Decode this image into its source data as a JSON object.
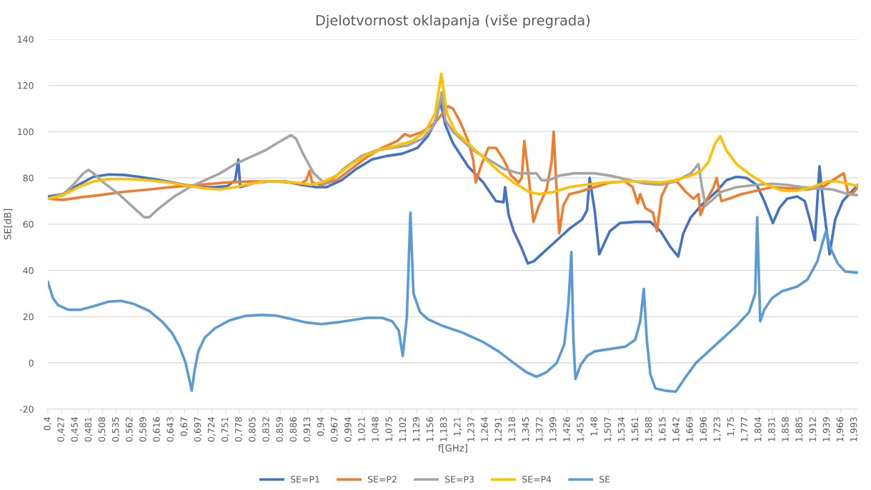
{
  "chart_data": {
    "type": "line",
    "title": "Djelotvornost oklapanja (više pregrada)",
    "xlabel": "f[GHz]",
    "ylabel": "SE[dB]",
    "xlim": [
      0.4,
      2.0
    ],
    "ylim": [
      -20,
      140
    ],
    "yticks": [
      -20,
      0,
      20,
      40,
      60,
      80,
      100,
      120,
      140
    ],
    "xticks": [
      {
        "value": 0.4,
        "label": "0,4"
      },
      {
        "value": 0.427,
        "label": "0,427"
      },
      {
        "value": 0.454,
        "label": "0,454"
      },
      {
        "value": 0.481,
        "label": "0,481"
      },
      {
        "value": 0.508,
        "label": "0,508"
      },
      {
        "value": 0.535,
        "label": "0,535"
      },
      {
        "value": 0.562,
        "label": "0,562"
      },
      {
        "value": 0.589,
        "label": "0,589"
      },
      {
        "value": 0.616,
        "label": "0,616"
      },
      {
        "value": 0.643,
        "label": "0,643"
      },
      {
        "value": 0.67,
        "label": "0,67"
      },
      {
        "value": 0.697,
        "label": "0,697"
      },
      {
        "value": 0.724,
        "label": "0,724"
      },
      {
        "value": 0.751,
        "label": "0,751"
      },
      {
        "value": 0.778,
        "label": "0,778"
      },
      {
        "value": 0.805,
        "label": "0,805"
      },
      {
        "value": 0.832,
        "label": "0,832"
      },
      {
        "value": 0.859,
        "label": "0,859"
      },
      {
        "value": 0.886,
        "label": "0,886"
      },
      {
        "value": 0.913,
        "label": "0,913"
      },
      {
        "value": 0.94,
        "label": "0,94"
      },
      {
        "value": 0.967,
        "label": "0,967"
      },
      {
        "value": 0.994,
        "label": "0,994"
      },
      {
        "value": 1.021,
        "label": "1,021"
      },
      {
        "value": 1.048,
        "label": "1,048"
      },
      {
        "value": 1.075,
        "label": "1,075"
      },
      {
        "value": 1.102,
        "label": "1,102"
      },
      {
        "value": 1.129,
        "label": "1,129"
      },
      {
        "value": 1.156,
        "label": "1,156"
      },
      {
        "value": 1.183,
        "label": "1,183"
      },
      {
        "value": 1.21,
        "label": "1,21"
      },
      {
        "value": 1.237,
        "label": "1,237"
      },
      {
        "value": 1.264,
        "label": "1,264"
      },
      {
        "value": 1.291,
        "label": "1,291"
      },
      {
        "value": 1.318,
        "label": "1,318"
      },
      {
        "value": 1.345,
        "label": "1,345"
      },
      {
        "value": 1.372,
        "label": "1,372"
      },
      {
        "value": 1.399,
        "label": "1,399"
      },
      {
        "value": 1.426,
        "label": "1,426"
      },
      {
        "value": 1.453,
        "label": "1,453"
      },
      {
        "value": 1.48,
        "label": "1,48"
      },
      {
        "value": 1.507,
        "label": "1,507"
      },
      {
        "value": 1.534,
        "label": "1,534"
      },
      {
        "value": 1.561,
        "label": "1,561"
      },
      {
        "value": 1.588,
        "label": "1,588"
      },
      {
        "value": 1.615,
        "label": "1,615"
      },
      {
        "value": 1.642,
        "label": "1,642"
      },
      {
        "value": 1.669,
        "label": "1,669"
      },
      {
        "value": 1.696,
        "label": "1,696"
      },
      {
        "value": 1.723,
        "label": "1,723"
      },
      {
        "value": 1.75,
        "label": "1,75"
      },
      {
        "value": 1.777,
        "label": "1,777"
      },
      {
        "value": 1.804,
        "label": "1,804"
      },
      {
        "value": 1.831,
        "label": "1,831"
      },
      {
        "value": 1.858,
        "label": "1,858"
      },
      {
        "value": 1.885,
        "label": "1,885"
      },
      {
        "value": 1.912,
        "label": "1,912"
      },
      {
        "value": 1.939,
        "label": "1,939"
      },
      {
        "value": 1.966,
        "label": "1,966"
      },
      {
        "value": 1.993,
        "label": "1,993"
      }
    ],
    "grid": "y",
    "legend": "bottom",
    "marker": "none",
    "line_style": "solid",
    "series": [
      {
        "name": "SE=P1",
        "color": "#4472c4",
        "x": [
          0.4,
          0.43,
          0.46,
          0.49,
          0.52,
          0.55,
          0.58,
          0.61,
          0.64,
          0.67,
          0.7,
          0.73,
          0.755,
          0.77,
          0.776,
          0.78,
          0.81,
          0.84,
          0.87,
          0.9,
          0.93,
          0.95,
          0.98,
          1.01,
          1.04,
          1.07,
          1.1,
          1.13,
          1.15,
          1.165,
          1.175,
          1.185,
          1.2,
          1.23,
          1.26,
          1.285,
          1.3,
          1.303,
          1.31,
          1.32,
          1.335,
          1.348,
          1.36,
          1.375,
          1.4,
          1.43,
          1.455,
          1.465,
          1.47,
          1.48,
          1.489,
          1.51,
          1.53,
          1.56,
          1.59,
          1.61,
          1.63,
          1.645,
          1.655,
          1.67,
          1.69,
          1.72,
          1.74,
          1.76,
          1.78,
          1.8,
          1.815,
          1.832,
          1.845,
          1.86,
          1.88,
          1.895,
          1.905,
          1.915,
          1.924,
          1.932,
          1.944,
          1.955,
          1.97,
          2.0
        ],
        "values": [
          72,
          73,
          77,
          80.5,
          81.5,
          81.3,
          80.5,
          79.5,
          78.3,
          77,
          76,
          76,
          76.5,
          79,
          88,
          76,
          78,
          78.5,
          78.5,
          77,
          76,
          76,
          79,
          84,
          88,
          89.5,
          90.5,
          93,
          98,
          104,
          113,
          103,
          95,
          85,
          78,
          70,
          69.5,
          76,
          64,
          57,
          50,
          43,
          44,
          47,
          52,
          58,
          62,
          66,
          80,
          66,
          47,
          57,
          60.5,
          61,
          61,
          57,
          50,
          46,
          56,
          63,
          68,
          74,
          79,
          80.5,
          80,
          77,
          70,
          60.5,
          67,
          71,
          72,
          70,
          62,
          53,
          85,
          68,
          47,
          62,
          70,
          77
        ]
      },
      {
        "name": "SE=P2",
        "color": "#ed7d31",
        "x": [
          0.4,
          0.43,
          0.46,
          0.5,
          0.55,
          0.6,
          0.65,
          0.7,
          0.75,
          0.8,
          0.85,
          0.88,
          0.9,
          0.91,
          0.917,
          0.922,
          0.94,
          0.97,
          1.0,
          1.03,
          1.06,
          1.09,
          1.105,
          1.115,
          1.14,
          1.165,
          1.18,
          1.19,
          1.2,
          1.215,
          1.23,
          1.24,
          1.245,
          1.255,
          1.27,
          1.285,
          1.3,
          1.315,
          1.33,
          1.336,
          1.341,
          1.35,
          1.359,
          1.37,
          1.385,
          1.395,
          1.399,
          1.404,
          1.41,
          1.418,
          1.43,
          1.45,
          1.48,
          1.51,
          1.54,
          1.555,
          1.565,
          1.57,
          1.58,
          1.595,
          1.603,
          1.612,
          1.625,
          1.64,
          1.66,
          1.675,
          1.685,
          1.689,
          1.7,
          1.715,
          1.721,
          1.73,
          1.745,
          1.77,
          1.8,
          1.83,
          1.87,
          1.9,
          1.93,
          1.95,
          1.972,
          1.98,
          1.988,
          2.0
        ],
        "values": [
          71,
          70.5,
          71.5,
          72.5,
          74,
          75,
          76.2,
          77,
          78,
          78.5,
          78.5,
          78,
          77.5,
          79,
          83,
          78,
          77,
          79,
          84,
          89,
          93,
          96,
          99,
          98,
          100,
          104,
          108,
          111,
          110,
          104,
          96,
          88,
          78,
          85,
          93,
          93,
          88,
          81,
          78,
          80,
          96,
          80,
          61,
          68,
          75,
          87,
          100,
          78,
          56,
          68,
          73,
          74,
          76,
          78,
          78.5,
          76,
          69,
          73,
          67,
          65,
          57,
          72,
          78,
          79,
          74,
          71,
          73,
          64,
          70,
          76,
          80,
          70,
          71,
          73,
          74.5,
          76,
          75.5,
          75,
          76,
          79,
          82,
          74,
          73,
          76
        ]
      },
      {
        "name": "SE=P3",
        "color": "#a5a5a5",
        "x": [
          0.4,
          0.43,
          0.45,
          0.47,
          0.48,
          0.49,
          0.51,
          0.54,
          0.57,
          0.59,
          0.6,
          0.62,
          0.65,
          0.68,
          0.71,
          0.74,
          0.77,
          0.8,
          0.83,
          0.86,
          0.88,
          0.89,
          0.905,
          0.925,
          0.945,
          0.96,
          0.99,
          1.02,
          1.05,
          1.08,
          1.11,
          1.14,
          1.16,
          1.17,
          1.178,
          1.185,
          1.2,
          1.21,
          1.24,
          1.27,
          1.3,
          1.33,
          1.365,
          1.375,
          1.39,
          1.41,
          1.44,
          1.48,
          1.51,
          1.55,
          1.58,
          1.61,
          1.64,
          1.67,
          1.685,
          1.692,
          1.699,
          1.71,
          1.73,
          1.76,
          1.8,
          1.83,
          1.86,
          1.89,
          1.92,
          1.95,
          1.98,
          2.0
        ],
        "values": [
          71,
          73,
          77,
          82,
          83.5,
          82,
          78,
          73,
          67,
          63,
          63,
          67,
          72,
          76,
          79,
          82,
          86,
          89,
          92,
          96,
          98.5,
          97,
          90,
          82,
          78,
          79,
          85,
          89.5,
          92,
          93,
          94,
          97,
          102,
          108,
          117,
          105,
          100,
          98,
          92,
          88,
          84,
          82,
          82,
          79,
          79,
          81,
          82,
          82,
          81,
          79,
          77.5,
          77,
          78.5,
          82,
          86,
          76,
          68,
          70,
          74,
          76,
          77,
          77.5,
          77,
          76,
          75.5,
          75,
          73,
          72.5
        ]
      },
      {
        "name": "SE=P4",
        "color": "#ffc000",
        "x": [
          0.4,
          0.43,
          0.46,
          0.49,
          0.52,
          0.56,
          0.6,
          0.64,
          0.68,
          0.71,
          0.74,
          0.77,
          0.8,
          0.83,
          0.86,
          0.89,
          0.92,
          0.945,
          0.97,
          1.0,
          1.03,
          1.06,
          1.09,
          1.12,
          1.145,
          1.165,
          1.177,
          1.188,
          1.205,
          1.23,
          1.26,
          1.29,
          1.32,
          1.35,
          1.37,
          1.4,
          1.43,
          1.46,
          1.5,
          1.54,
          1.58,
          1.61,
          1.64,
          1.67,
          1.69,
          1.705,
          1.718,
          1.728,
          1.74,
          1.76,
          1.79,
          1.82,
          1.85,
          1.88,
          1.91,
          1.94,
          1.96,
          1.98,
          2.0
        ],
        "values": [
          71,
          72.5,
          76,
          78.5,
          79.5,
          79.5,
          79,
          78,
          76.5,
          75.5,
          75,
          76,
          77.5,
          78.5,
          78.5,
          78,
          77,
          78.5,
          81,
          86,
          90,
          92.5,
          94,
          96,
          100,
          108,
          125,
          108,
          100,
          95,
          89,
          83,
          78,
          74,
          73,
          74,
          76,
          77,
          78,
          78.5,
          78.5,
          78,
          79,
          81,
          83,
          87,
          95,
          98,
          92,
          86,
          81,
          77,
          74.5,
          74.5,
          76,
          78.5,
          78.5,
          77.5,
          76.5
        ]
      },
      {
        "name": "SE",
        "color": "#5b9bd5",
        "x": [
          0.4,
          0.41,
          0.42,
          0.44,
          0.465,
          0.49,
          0.52,
          0.545,
          0.57,
          0.6,
          0.625,
          0.645,
          0.66,
          0.672,
          0.684,
          0.69,
          0.697,
          0.71,
          0.73,
          0.76,
          0.79,
          0.82,
          0.85,
          0.88,
          0.91,
          0.94,
          0.97,
          1.0,
          1.03,
          1.06,
          1.08,
          1.093,
          1.101,
          1.109,
          1.116,
          1.122,
          1.135,
          1.15,
          1.18,
          1.22,
          1.26,
          1.29,
          1.32,
          1.345,
          1.365,
          1.385,
          1.405,
          1.42,
          1.428,
          1.434,
          1.438,
          1.442,
          1.452,
          1.465,
          1.48,
          1.51,
          1.54,
          1.56,
          1.57,
          1.577,
          1.583,
          1.59,
          1.6,
          1.62,
          1.64,
          1.66,
          1.68,
          1.7,
          1.73,
          1.76,
          1.785,
          1.797,
          1.801,
          1.807,
          1.815,
          1.83,
          1.85,
          1.88,
          1.9,
          1.92,
          1.93,
          1.937,
          1.945,
          1.96,
          1.975,
          2.0
        ],
        "values": [
          35,
          28,
          25,
          23,
          23,
          24.5,
          26.5,
          26.8,
          25.5,
          22.5,
          18,
          13,
          7,
          0,
          -12,
          -3,
          5,
          11,
          15,
          18.5,
          20.3,
          20.8,
          20.5,
          19,
          17.5,
          16.8,
          17.5,
          18.5,
          19.5,
          19.5,
          18,
          14,
          3,
          20,
          65,
          30,
          22,
          19,
          16,
          13,
          9,
          5,
          0,
          -4,
          -6,
          -4,
          0,
          8,
          25,
          48,
          10,
          -7,
          -1,
          3,
          5,
          6,
          7,
          10,
          18,
          32,
          10,
          -5,
          -11,
          -12,
          -12.5,
          -6,
          0,
          4,
          10,
          16,
          22,
          30,
          63,
          18,
          23,
          28,
          31,
          33,
          36,
          44,
          52,
          57,
          50,
          43,
          39.5,
          39
        ]
      }
    ]
  }
}
